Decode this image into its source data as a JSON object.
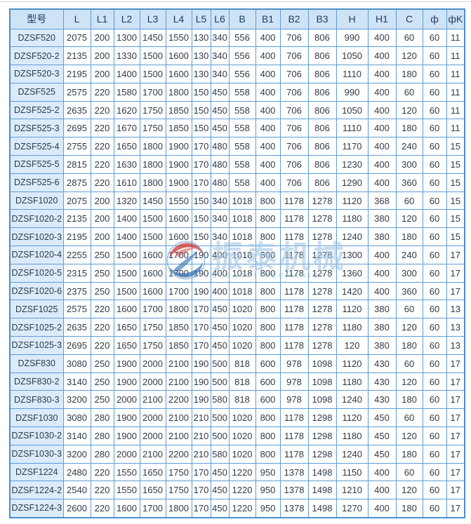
{
  "table": {
    "columns": [
      "型号",
      "L",
      "L1",
      "L2",
      "L3",
      "L4",
      "L5",
      "L6",
      "B",
      "B1",
      "B2",
      "B3",
      "H",
      "H1",
      "C",
      "ф",
      "фK"
    ],
    "rows": [
      [
        "DZSF520",
        "2075",
        "200",
        "1300",
        "1450",
        "1550",
        "130",
        "340",
        "556",
        "400",
        "706",
        "806",
        "990",
        "400",
        "60",
        "60",
        "11"
      ],
      [
        "DZSF520-2",
        "2135",
        "200",
        "1330",
        "1500",
        "1600",
        "130",
        "340",
        "556",
        "400",
        "706",
        "806",
        "1050",
        "400",
        "120",
        "60",
        "11"
      ],
      [
        "DZSF520-3",
        "2195",
        "200",
        "1400",
        "1500",
        "1600",
        "130",
        "340",
        "556",
        "400",
        "706",
        "806",
        "1110",
        "400",
        "180",
        "60",
        "11"
      ],
      [
        "DZSF525",
        "2575",
        "220",
        "1580",
        "1700",
        "1800",
        "150",
        "450",
        "558",
        "400",
        "706",
        "806",
        "990",
        "400",
        "60",
        "60",
        "11"
      ],
      [
        "DZSF525-2",
        "2635",
        "220",
        "1620",
        "1750",
        "1850",
        "150",
        "450",
        "558",
        "400",
        "706",
        "806",
        "1050",
        "400",
        "120",
        "60",
        "11"
      ],
      [
        "DZSF525-3",
        "2695",
        "220",
        "1670",
        "1750",
        "1850",
        "150",
        "450",
        "558",
        "400",
        "706",
        "806",
        "1110",
        "400",
        "180",
        "60",
        "11"
      ],
      [
        "DZSF525-4",
        "2755",
        "220",
        "1650",
        "1800",
        "1900",
        "170",
        "480",
        "558",
        "400",
        "706",
        "806",
        "1170",
        "400",
        "240",
        "60",
        "15"
      ],
      [
        "DZSF525-5",
        "2815",
        "220",
        "1630",
        "1800",
        "1900",
        "170",
        "480",
        "558",
        "400",
        "706",
        "806",
        "1230",
        "400",
        "300",
        "60",
        "15"
      ],
      [
        "DZSF525-6",
        "2875",
        "220",
        "1610",
        "1800",
        "1900",
        "170",
        "480",
        "558",
        "400",
        "706",
        "806",
        "1290",
        "400",
        "360",
        "60",
        "15"
      ],
      [
        "DZSF1020",
        "2075",
        "200",
        "1320",
        "1450",
        "1550",
        "150",
        "340",
        "1018",
        "800",
        "1178",
        "1278",
        "1120",
        "368",
        "60",
        "60",
        "15"
      ],
      [
        "DZSF1020-2",
        "2135",
        "200",
        "1400",
        "1500",
        "1600",
        "150",
        "340",
        "1018",
        "800",
        "1178",
        "1278",
        "1180",
        "380",
        "120",
        "60",
        "15"
      ],
      [
        "DZSF1020-3",
        "2195",
        "200",
        "1400",
        "1500",
        "1600",
        "150",
        "340",
        "1018",
        "800",
        "1178",
        "1278",
        "1240",
        "380",
        "180",
        "60",
        "15"
      ],
      [
        "DZSF1020-4",
        "2255",
        "250",
        "1500",
        "1600",
        "1700",
        "190",
        "400",
        "1018",
        "800",
        "1178",
        "1278",
        "1300",
        "400",
        "240",
        "60",
        "17"
      ],
      [
        "DZSF1020-5",
        "2315",
        "250",
        "1500",
        "1600",
        "1700",
        "190",
        "400",
        "1018",
        "800",
        "1178",
        "1278",
        "1360",
        "400",
        "300",
        "60",
        "17"
      ],
      [
        "DZSF1020-6",
        "2375",
        "250",
        "1500",
        "1600",
        "1700",
        "190",
        "400",
        "1018",
        "800",
        "1178",
        "1278",
        "1420",
        "400",
        "360",
        "60",
        "17"
      ],
      [
        "DZSF1025",
        "2575",
        "220",
        "1600",
        "1700",
        "1800",
        "170",
        "450",
        "1020",
        "800",
        "1178",
        "1278",
        "1120",
        "380",
        "60",
        "60",
        "13"
      ],
      [
        "DZSF1025-2",
        "2635",
        "220",
        "1650",
        "1750",
        "1850",
        "170",
        "450",
        "1020",
        "800",
        "1178",
        "1278",
        "1180",
        "380",
        "120",
        "60",
        "13"
      ],
      [
        "DZSF1025-3",
        "2695",
        "220",
        "1650",
        "1750",
        "1850",
        "170",
        "450",
        "1020",
        "800",
        "1178",
        "1278",
        "120",
        "380",
        "180",
        "60",
        "13"
      ],
      [
        "DZSF830",
        "3080",
        "250",
        "1900",
        "2000",
        "2100",
        "190",
        "500",
        "818",
        "600",
        "978",
        "1098",
        "1120",
        "430",
        "60",
        "60",
        "17"
      ],
      [
        "DZSF830-2",
        "3140",
        "250",
        "1900",
        "2000",
        "2100",
        "190",
        "500",
        "818",
        "600",
        "978",
        "1098",
        "1180",
        "430",
        "120",
        "60",
        "17"
      ],
      [
        "DZSF830-3",
        "3200",
        "250",
        "2000",
        "2100",
        "2200",
        "190",
        "580",
        "818",
        "600",
        "978",
        "1098",
        "1240",
        "430",
        "180",
        "60",
        "17"
      ],
      [
        "DZSF1030",
        "3080",
        "280",
        "1900",
        "2000",
        "2100",
        "210",
        "500",
        "1020",
        "800",
        "1178",
        "1298",
        "1120",
        "450",
        "60",
        "60",
        "17"
      ],
      [
        "DZSF1030-2",
        "3140",
        "280",
        "1900",
        "2000",
        "2100",
        "210",
        "500",
        "1020",
        "800",
        "1178",
        "1298",
        "1180",
        "450",
        "120",
        "60",
        "17"
      ],
      [
        "DZSF1030-3",
        "3200",
        "280",
        "2000",
        "2100",
        "2200",
        "210",
        "580",
        "1020",
        "800",
        "1178",
        "1298",
        "1240",
        "450",
        "180",
        "60",
        "17"
      ],
      [
        "DZSF1224",
        "2480",
        "220",
        "1550",
        "1650",
        "1750",
        "170",
        "450",
        "1220",
        "950",
        "1378",
        "1498",
        "1150",
        "400",
        "60",
        "60",
        "17"
      ],
      [
        "DZSF1224-2",
        "2540",
        "220",
        "1550",
        "1650",
        "1750",
        "170",
        "450",
        "1220",
        "950",
        "1378",
        "1498",
        "1210",
        "400",
        "120",
        "60",
        "17"
      ],
      [
        "DZSF1224-3",
        "2600",
        "220",
        "1600",
        "1700",
        "1800",
        "170",
        "450",
        "1220",
        "950",
        "1378",
        "1498",
        "1270",
        "400",
        "180",
        "60",
        "17"
      ]
    ]
  },
  "watermark": {
    "text_cn": "振泰机械",
    "text_en": "ZHENTAI MECHANICAL"
  },
  "colors": {
    "header_bg": "#cfe3f7",
    "model_bg": "#dcebfb",
    "border_color": "#5f9cd4",
    "outer_border": "#4a90cc",
    "header_text": "#1c3d61",
    "cell_text": "#2e3b47",
    "wm_red": "#c9302c",
    "wm_blue": "#2d6cb3",
    "wm_cn": "#a5c7e6",
    "wm_en": "#8fc3cf"
  }
}
